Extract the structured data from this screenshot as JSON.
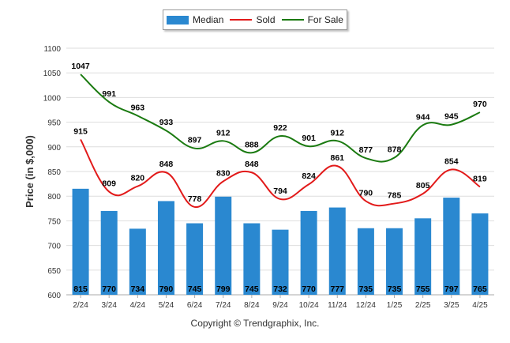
{
  "legend": {
    "median": "Median",
    "sold": "Sold",
    "for_sale": "For Sale"
  },
  "copyright": "Copyright © Trendgraphix, Inc.",
  "colors": {
    "median": "#2a88d0",
    "sold": "#e21a1a",
    "for_sale": "#1a7a10"
  },
  "chart_data": {
    "type": "bar",
    "categories": [
      "2/24",
      "3/24",
      "4/24",
      "5/24",
      "6/24",
      "7/24",
      "8/24",
      "9/24",
      "10/24",
      "11/24",
      "12/24",
      "1/25",
      "2/25",
      "3/25",
      "4/25"
    ],
    "series": [
      {
        "name": "Median",
        "type": "bar",
        "values": [
          815,
          770,
          734,
          790,
          745,
          799,
          745,
          732,
          770,
          777,
          735,
          735,
          755,
          797,
          765
        ]
      },
      {
        "name": "Sold",
        "type": "line",
        "values": [
          915,
          809,
          820,
          848,
          778,
          830,
          848,
          794,
          824,
          861,
          790,
          785,
          805,
          854,
          819
        ]
      },
      {
        "name": "For Sale",
        "type": "line",
        "values": [
          1047,
          991,
          963,
          933,
          897,
          912,
          888,
          922,
          901,
          912,
          877,
          878,
          944,
          945,
          970
        ]
      }
    ],
    "ylabel": "Price (in $,000)",
    "xlabel": "",
    "ylim": [
      600,
      1100
    ],
    "yticks": [
      600,
      650,
      700,
      750,
      800,
      850,
      900,
      950,
      1000,
      1050,
      1100
    ],
    "grid": true,
    "legend_position": "top-center"
  }
}
